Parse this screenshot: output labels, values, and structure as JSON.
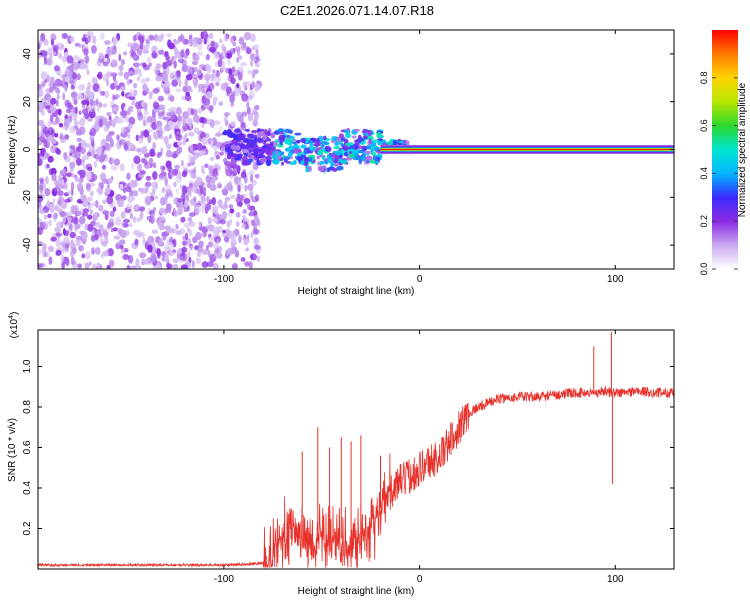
{
  "title": "C2E1.2026.071.14.07.R18",
  "colors": {
    "line": "#e8312b",
    "colormap": [
      "#ffffff",
      "#c9a8ef",
      "#8a2be2",
      "#3b2bff",
      "#00b7ff",
      "#00e5d0",
      "#2bd92b",
      "#b8e600",
      "#ffd400",
      "#ff7a00",
      "#ff0000"
    ]
  },
  "chart_data": [
    {
      "type": "heatmap",
      "name": "spectrogram",
      "xlabel": "Height of straight line (km)",
      "ylabel": "Frequency (Hz)",
      "xlim": [
        -195,
        130
      ],
      "ylim": [
        -50,
        50
      ],
      "xticks": [
        -100,
        0,
        100
      ],
      "xtick_labels": [
        "-100",
        "0",
        "100"
      ],
      "yticks": [
        -40,
        -20,
        0,
        20,
        40
      ],
      "ytick_labels": [
        "-40",
        "-20",
        "0",
        "20",
        "40"
      ],
      "noise_region": {
        "x_from": -195,
        "x_to": -82,
        "freq_range": [
          -50,
          48
        ]
      },
      "transition_region": {
        "x_from": -100,
        "x_to": -5,
        "freq_range": [
          -10,
          8
        ]
      },
      "line_component": {
        "x_from": -20,
        "x_to": 130,
        "freq": 0,
        "amplitude": 1.0
      },
      "colorbar": {
        "label": "Normalized spectral amplitude",
        "range": [
          0,
          1
        ],
        "ticks": [
          0.0,
          0.2,
          0.4,
          0.6,
          0.8
        ],
        "tick_labels": [
          "0.0",
          "0.2",
          "0.4",
          "0.6",
          "0.8"
        ]
      }
    },
    {
      "type": "line",
      "name": "snr",
      "xlabel": "Height of straight line (km)",
      "ylabel": "SNR (10 * v/v)",
      "multiplier": "(x10",
      "multiplier_exp": "4",
      "multiplier_close": ")",
      "xlim": [
        -195,
        130
      ],
      "ylim": [
        0,
        1.18
      ],
      "xticks": [
        -100,
        0,
        100
      ],
      "xtick_labels": [
        "-100",
        "0",
        "100"
      ],
      "yticks": [
        0.2,
        0.4,
        0.6,
        0.8,
        1.0
      ],
      "ytick_labels": [
        "0.2",
        "0.4",
        "0.6",
        "0.8",
        "1.0"
      ],
      "x": [
        -195,
        -100,
        -85,
        -80,
        -75,
        -70,
        -65,
        -60,
        -55,
        -50,
        -45,
        -40,
        -35,
        -30,
        -25,
        -20,
        -15,
        -10,
        -5,
        0,
        5,
        10,
        15,
        20,
        25,
        30,
        35,
        40,
        50,
        60,
        70,
        80,
        90,
        95,
        98,
        100,
        105,
        110,
        120,
        130
      ],
      "values": [
        0.02,
        0.02,
        0.025,
        0.03,
        0.07,
        0.15,
        0.2,
        0.17,
        0.13,
        0.14,
        0.15,
        0.15,
        0.12,
        0.16,
        0.22,
        0.3,
        0.38,
        0.43,
        0.46,
        0.5,
        0.53,
        0.55,
        0.62,
        0.7,
        0.77,
        0.8,
        0.82,
        0.84,
        0.85,
        0.85,
        0.86,
        0.87,
        0.87,
        0.88,
        0.87,
        0.87,
        0.87,
        0.88,
        0.87,
        0.87
      ],
      "spikes": [
        {
          "x": -60,
          "value": 0.58
        },
        {
          "x": -52,
          "value": 0.7
        },
        {
          "x": -46,
          "value": 0.6
        },
        {
          "x": -40,
          "value": 0.65
        },
        {
          "x": -35,
          "value": 0.63
        },
        {
          "x": -30,
          "value": 0.66
        },
        {
          "x": -20,
          "value": 0.56
        },
        {
          "x": 89,
          "value": 1.1
        },
        {
          "x": 98,
          "value": 1.17
        },
        {
          "x": 98.5,
          "value": 0.42
        }
      ]
    }
  ]
}
